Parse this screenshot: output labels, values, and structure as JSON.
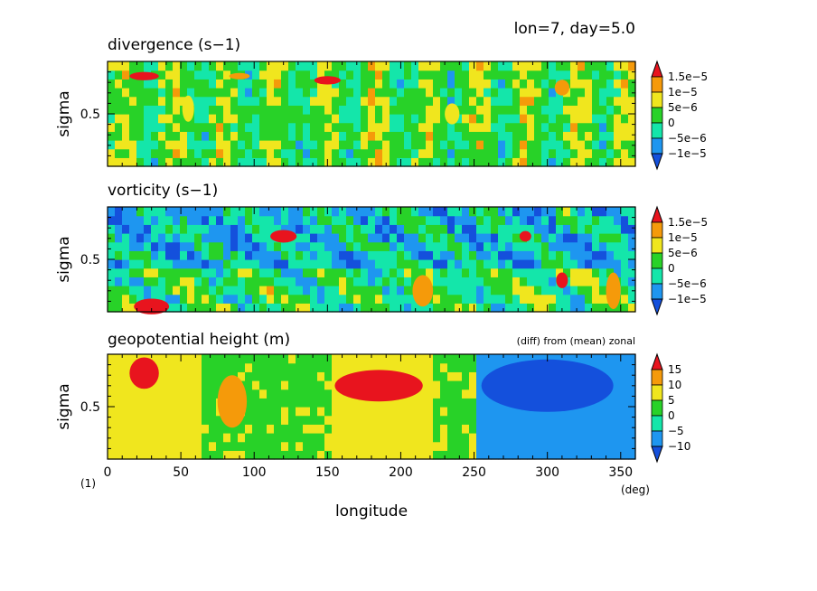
{
  "header": {
    "run_label": "lon=7, day=5.0"
  },
  "figure": {
    "common_xlabel": "longitude",
    "x_unit": "(deg)",
    "corner_note": "(1)"
  },
  "chart_data": [
    {
      "type": "heatmap",
      "title": "divergence (s−1)",
      "ylabel": "sigma",
      "xlabel": "longitude",
      "xlim": [
        0,
        360
      ],
      "ylim": [
        0.0,
        1.0
      ],
      "y_ticks": [
        "0.5"
      ],
      "x_ticks": [],
      "note": "",
      "colorbar": {
        "labels": [
          "1.5e−5",
          "1e−5",
          "5e−6",
          "0",
          "−5e−6",
          "−1e−5"
        ],
        "colors": [
          "#e8141e",
          "#f59a0a",
          "#f0e61e",
          "#28d228",
          "#14e6aa",
          "#1e96f0",
          "#1450dc"
        ]
      },
      "hot_spots": [
        {
          "x": 25,
          "y": 0.86,
          "level": 6,
          "w": 20,
          "h": 0.08
        },
        {
          "x": 90,
          "y": 0.86,
          "level": 5,
          "w": 14,
          "h": 0.06
        },
        {
          "x": 150,
          "y": 0.82,
          "level": 6,
          "w": 18,
          "h": 0.08
        },
        {
          "x": 55,
          "y": 0.55,
          "level": 4,
          "w": 8,
          "h": 0.25
        },
        {
          "x": 235,
          "y": 0.5,
          "level": 4,
          "w": 10,
          "h": 0.2
        },
        {
          "x": 310,
          "y": 0.75,
          "level": 5,
          "w": 10,
          "h": 0.15
        }
      ]
    },
    {
      "type": "heatmap",
      "title": "vorticity (s−1)",
      "ylabel": "sigma",
      "xlabel": "longitude",
      "xlim": [
        0,
        360
      ],
      "ylim": [
        0.0,
        1.0
      ],
      "y_ticks": [
        "0.5"
      ],
      "x_ticks": [],
      "note": "",
      "colorbar": {
        "labels": [
          "1.5e−5",
          "1e−5",
          "5e−6",
          "0",
          "−5e−6",
          "−1e−5"
        ],
        "colors": [
          "#e8141e",
          "#f59a0a",
          "#f0e61e",
          "#28d228",
          "#14e6aa",
          "#1e96f0",
          "#1450dc"
        ]
      },
      "hot_spots": [
        {
          "x": 30,
          "y": 0.05,
          "level": 6,
          "w": 24,
          "h": 0.15
        },
        {
          "x": 120,
          "y": 0.72,
          "level": 6,
          "w": 18,
          "h": 0.12
        },
        {
          "x": 215,
          "y": 0.2,
          "level": 5,
          "w": 14,
          "h": 0.3
        },
        {
          "x": 285,
          "y": 0.72,
          "level": 6,
          "w": 8,
          "h": 0.1
        },
        {
          "x": 310,
          "y": 0.3,
          "level": 6,
          "w": 8,
          "h": 0.15
        },
        {
          "x": 345,
          "y": 0.2,
          "level": 5,
          "w": 10,
          "h": 0.35
        }
      ]
    },
    {
      "type": "heatmap",
      "title": "geopotential height (m)",
      "ylabel": "sigma",
      "xlabel": "longitude",
      "xlim": [
        0,
        360
      ],
      "ylim": [
        0.0,
        1.0
      ],
      "y_ticks": [
        "0.5"
      ],
      "x_ticks": [
        "0",
        "50",
        "100",
        "150",
        "200",
        "250",
        "300",
        "350"
      ],
      "note": "(diff) from (mean) zonal",
      "colorbar": {
        "labels": [
          "15",
          "10",
          "5",
          "0",
          "−5",
          "−10"
        ],
        "colors": [
          "#e8141e",
          "#f59a0a",
          "#f0e61e",
          "#28d228",
          "#14e6aa",
          "#1e96f0",
          "#1450dc"
        ]
      },
      "hot_spots": [
        {
          "x": 25,
          "y": 0.82,
          "level": 6,
          "w": 20,
          "h": 0.3
        },
        {
          "x": 185,
          "y": 0.7,
          "level": 6,
          "w": 60,
          "h": 0.3
        },
        {
          "x": 85,
          "y": 0.55,
          "level": 5,
          "w": 20,
          "h": 0.5
        },
        {
          "x": 300,
          "y": 0.7,
          "level": 0,
          "w": 90,
          "h": 0.5
        }
      ]
    }
  ]
}
